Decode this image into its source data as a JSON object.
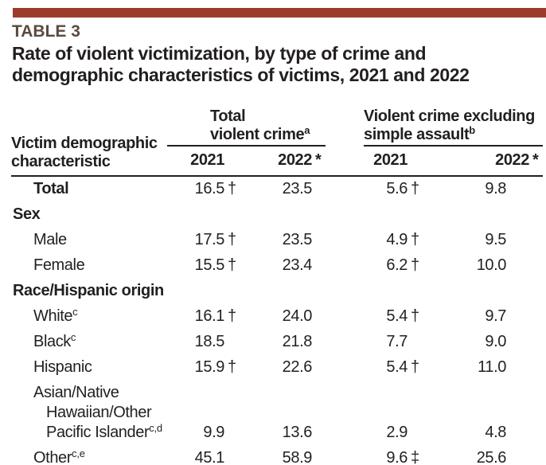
{
  "page": {
    "table_label": "TABLE 3",
    "title_line1": "Rate of violent victimization, by type of crime and",
    "title_line2": "demographic characteristics of victims, 2021 and 2022"
  },
  "colors": {
    "accent_bar": "#9c3b2b",
    "table_label_text": "#5a4a3e",
    "body_text": "#231f20"
  },
  "table": {
    "stub_head_line1": "Victim demographic",
    "stub_head_line2": "characteristic",
    "col_groups": [
      {
        "label_line1": "Total",
        "label_line2": "violent crime",
        "sup": "a"
      },
      {
        "label_line1": "Violent crime excluding",
        "label_line2": "simple assault",
        "sup": "b"
      }
    ],
    "year_cols": [
      {
        "label": "2021",
        "mark": ""
      },
      {
        "label": "2022",
        "mark": "*"
      },
      {
        "label": "2021",
        "mark": ""
      },
      {
        "label": "2022",
        "mark": "*"
      }
    ],
    "rows": [
      {
        "type": "item",
        "bold": true,
        "label": "Total",
        "sup": "",
        "values": [
          {
            "v": "16.5",
            "m": "†"
          },
          {
            "v": "23.5",
            "m": ""
          },
          {
            "v": "5.6",
            "m": "†"
          },
          {
            "v": "9.8",
            "m": ""
          }
        ]
      },
      {
        "type": "section",
        "label": "Sex",
        "sup": "",
        "values": []
      },
      {
        "type": "item",
        "label": "Male",
        "sup": "",
        "values": [
          {
            "v": "17.5",
            "m": "†"
          },
          {
            "v": "23.5",
            "m": ""
          },
          {
            "v": "4.9",
            "m": "†"
          },
          {
            "v": "9.5",
            "m": ""
          }
        ]
      },
      {
        "type": "item",
        "label": "Female",
        "sup": "",
        "values": [
          {
            "v": "15.5",
            "m": "†"
          },
          {
            "v": "23.4",
            "m": ""
          },
          {
            "v": "6.2",
            "m": "†"
          },
          {
            "v": "10.0",
            "m": ""
          }
        ]
      },
      {
        "type": "section",
        "label": "Race/Hispanic origin",
        "sup": "",
        "values": []
      },
      {
        "type": "item",
        "label": "White",
        "sup": "c",
        "values": [
          {
            "v": "16.1",
            "m": "†"
          },
          {
            "v": "24.0",
            "m": ""
          },
          {
            "v": "5.4",
            "m": "†"
          },
          {
            "v": "9.7",
            "m": ""
          }
        ]
      },
      {
        "type": "item",
        "label": "Black",
        "sup": "c",
        "values": [
          {
            "v": "18.5",
            "m": ""
          },
          {
            "v": "21.8",
            "m": ""
          },
          {
            "v": "7.7",
            "m": ""
          },
          {
            "v": "9.0",
            "m": ""
          }
        ]
      },
      {
        "type": "item",
        "label": "Hispanic",
        "sup": "",
        "values": [
          {
            "v": "15.9",
            "m": "†"
          },
          {
            "v": "22.6",
            "m": ""
          },
          {
            "v": "5.4",
            "m": "†"
          },
          {
            "v": "11.0",
            "m": ""
          }
        ]
      },
      {
        "type": "item",
        "label": "Asian/Native Hawaiian/Other Pacific Islander",
        "sup": "c,d",
        "label_lines": [
          "Asian/Native",
          "Hawaiian/Other",
          "Pacific Islander"
        ],
        "values": [
          {
            "v": "9.9",
            "m": ""
          },
          {
            "v": "13.6",
            "m": ""
          },
          {
            "v": "2.9",
            "m": ""
          },
          {
            "v": "4.8",
            "m": ""
          }
        ]
      },
      {
        "type": "item",
        "label": "Other",
        "sup": "c,e",
        "values": [
          {
            "v": "45.1",
            "m": ""
          },
          {
            "v": "58.9",
            "m": ""
          },
          {
            "v": "9.6",
            "m": "‡"
          },
          {
            "v": "25.6",
            "m": ""
          }
        ]
      }
    ]
  }
}
